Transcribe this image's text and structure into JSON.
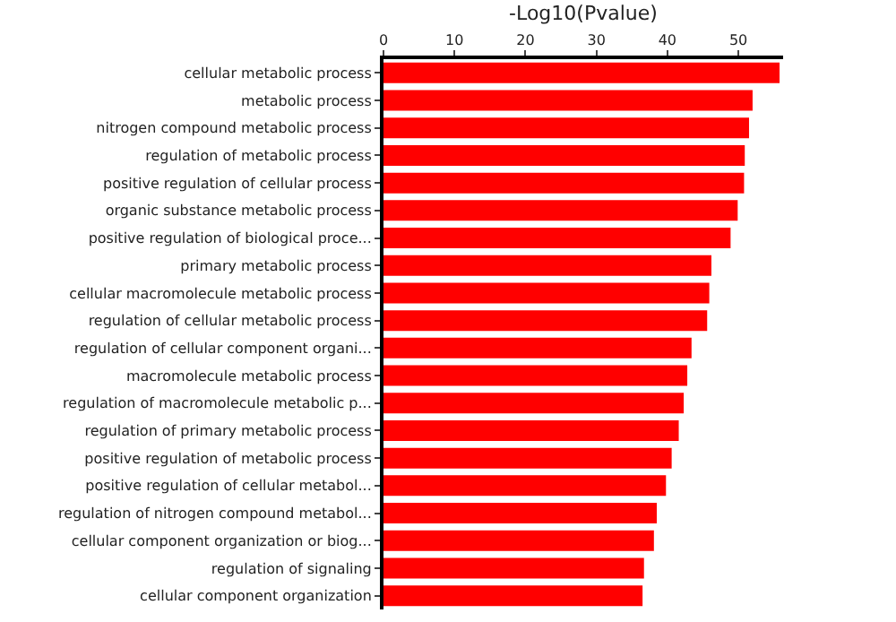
{
  "chart_data": {
    "type": "bar",
    "orientation": "horizontal",
    "xlabel": "-Log10(Pvalue)",
    "categories": [
      "cellular metabolic process",
      "metabolic process",
      "nitrogen compound metabolic process",
      "regulation of metabolic process",
      "positive regulation of cellular process",
      "organic substance metabolic process",
      "positive regulation of biological proce...",
      "primary metabolic process",
      "cellular macromolecule metabolic process",
      "regulation of cellular metabolic process",
      "regulation of cellular component organi...",
      "macromolecule metabolic process",
      "regulation of macromolecule metabolic p...",
      "regulation of primary metabolic process",
      "positive regulation of metabolic process",
      "positive regulation of cellular metabol...",
      "regulation of nitrogen compound metabol...",
      "cellular component organization or biog...",
      "regulation of signaling",
      "cellular component organization"
    ],
    "values": [
      55.8,
      52.0,
      51.5,
      50.9,
      50.8,
      49.9,
      48.9,
      46.2,
      45.9,
      45.6,
      43.4,
      42.8,
      42.3,
      41.6,
      40.6,
      39.8,
      38.5,
      38.1,
      36.7,
      36.5
    ],
    "color": "#ff0000",
    "xlim": [
      0,
      56.3
    ],
    "xticks": [
      0,
      10,
      20,
      30,
      40,
      50
    ]
  }
}
